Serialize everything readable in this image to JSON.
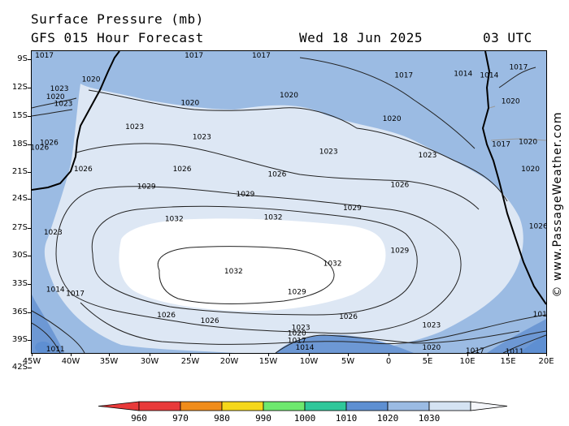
{
  "header": {
    "title": "Surface Pressure (mb)",
    "subtitle": "GFS 015 Hour Forecast",
    "date": "Wed 18 Jun 2025",
    "time": "03 UTC"
  },
  "watermark": "© www.PassageWeather.com",
  "axes": {
    "lat_labels": [
      "9S",
      "12S",
      "15S",
      "18S",
      "21S",
      "24S",
      "27S",
      "30S",
      "33S",
      "36S",
      "39S",
      "42S"
    ],
    "lon_labels": [
      "45W",
      "40W",
      "35W",
      "30W",
      "25W",
      "20W",
      "15W",
      "10W",
      "5W",
      "0",
      "5E",
      "10E",
      "15E",
      "20E"
    ]
  },
  "legend": {
    "colors": [
      "#e83a3a",
      "#f08c1a",
      "#f5d71a",
      "#6ee86e",
      "#2fc79a",
      "#5e8fd2",
      "#9bbbe3",
      "#d5e3f3"
    ],
    "labels": [
      "960",
      "970",
      "980",
      "990",
      "1000",
      "1010",
      "1020",
      "1030"
    ]
  },
  "fill_colors": {
    "band_1014_1020": "#9bbbe3",
    "band_1020_1030": "#dde7f4",
    "band_1030_plus": "#ffffff",
    "band_1010_1014": "#6d98d4"
  },
  "isobar_labels": [
    {
      "text": "1017",
      "lon": -43.4,
      "lat": -9.0
    },
    {
      "text": "1017",
      "lon": -24.5,
      "lat": -9.0
    },
    {
      "text": "1017",
      "lon": -16.0,
      "lat": -9.0
    },
    {
      "text": "1020",
      "lon": -37.5,
      "lat": -12.0
    },
    {
      "text": "1017",
      "lon": 2.0,
      "lat": -11.5
    },
    {
      "text": "1014",
      "lon": 9.5,
      "lat": -11.3
    },
    {
      "text": "1014",
      "lon": 12.8,
      "lat": -11.5
    },
    {
      "text": "1017",
      "lon": 16.5,
      "lat": -10.5
    },
    {
      "text": "1020",
      "lon": -12.5,
      "lat": -14.0
    },
    {
      "text": "1020",
      "lon": -25.0,
      "lat": -15.0
    },
    {
      "text": "1023",
      "lon": -41.5,
      "lat": -13.2
    },
    {
      "text": "1020",
      "lon": -42.0,
      "lat": -14.2
    },
    {
      "text": "1023",
      "lon": -41.0,
      "lat": -15.1
    },
    {
      "text": "1020",
      "lon": 15.5,
      "lat": -14.8
    },
    {
      "text": "1020",
      "lon": 0.5,
      "lat": -17.0
    },
    {
      "text": "1023",
      "lon": -32.0,
      "lat": -18.0
    },
    {
      "text": "1023",
      "lon": -23.5,
      "lat": -19.3
    },
    {
      "text": "1017",
      "lon": 14.3,
      "lat": -20.2
    },
    {
      "text": "1020",
      "lon": 17.7,
      "lat": -19.9
    },
    {
      "text": "1026",
      "lon": -42.8,
      "lat": -20.0
    },
    {
      "text": "1026",
      "lon": -44.0,
      "lat": -20.6
    },
    {
      "text": "1023",
      "lon": -7.5,
      "lat": -21.1
    },
    {
      "text": "1023",
      "lon": 5.0,
      "lat": -21.6
    },
    {
      "text": "1026",
      "lon": -38.5,
      "lat": -23.3
    },
    {
      "text": "1026",
      "lon": -26.0,
      "lat": -23.3
    },
    {
      "text": "1020",
      "lon": 18.0,
      "lat": -23.3
    },
    {
      "text": "1026",
      "lon": -14.0,
      "lat": -24.0
    },
    {
      "text": "1026",
      "lon": 1.5,
      "lat": -25.3
    },
    {
      "text": "1029",
      "lon": -30.5,
      "lat": -25.5
    },
    {
      "text": "1029",
      "lon": -18.0,
      "lat": -26.5
    },
    {
      "text": "1029",
      "lon": -4.5,
      "lat": -28.2
    },
    {
      "text": "1032",
      "lon": -27.0,
      "lat": -29.6
    },
    {
      "text": "1032",
      "lon": -14.5,
      "lat": -29.4
    },
    {
      "text": "1023",
      "lon": -42.3,
      "lat": -31.3
    },
    {
      "text": "1026",
      "lon": 19.0,
      "lat": -30.5
    },
    {
      "text": "1029",
      "lon": 1.5,
      "lat": -33.6
    },
    {
      "text": "1032",
      "lon": -7.0,
      "lat": -35.2
    },
    {
      "text": "1032",
      "lon": -19.5,
      "lat": -36.2
    },
    {
      "text": "1014",
      "lon": -42.0,
      "lat": -38.5
    },
    {
      "text": "1017",
      "lon": -39.5,
      "lat": -39.0
    },
    {
      "text": "1029",
      "lon": -11.5,
      "lat": -38.8
    },
    {
      "text": "1026",
      "lon": -28.0,
      "lat": -41.7
    },
    {
      "text": "1026",
      "lon": -22.5,
      "lat": -42.4
    },
    {
      "text": "1026",
      "lon": -5.0,
      "lat": -41.9
    },
    {
      "text": "1023",
      "lon": -11.0,
      "lat": -43.3
    },
    {
      "text": "1023",
      "lon": 5.5,
      "lat": -43.0
    },
    {
      "text": "1020",
      "lon": -11.5,
      "lat": -44.0
    },
    {
      "text": "1017",
      "lon": -11.5,
      "lat": -44.9
    },
    {
      "text": "1014",
      "lon": -10.5,
      "lat": -45.8
    },
    {
      "text": "1020",
      "lon": 5.5,
      "lat": -45.8
    },
    {
      "text": "1017",
      "lon": 11.0,
      "lat": -46.2
    },
    {
      "text": "1017",
      "lon": 2.5,
      "lat": -47.0
    },
    {
      "text": "1011",
      "lon": -42.0,
      "lat": -46.0
    },
    {
      "text": "1011",
      "lon": 16.0,
      "lat": -46.3
    },
    {
      "text": "1011",
      "lon": 19.5,
      "lat": -41.6
    }
  ]
}
